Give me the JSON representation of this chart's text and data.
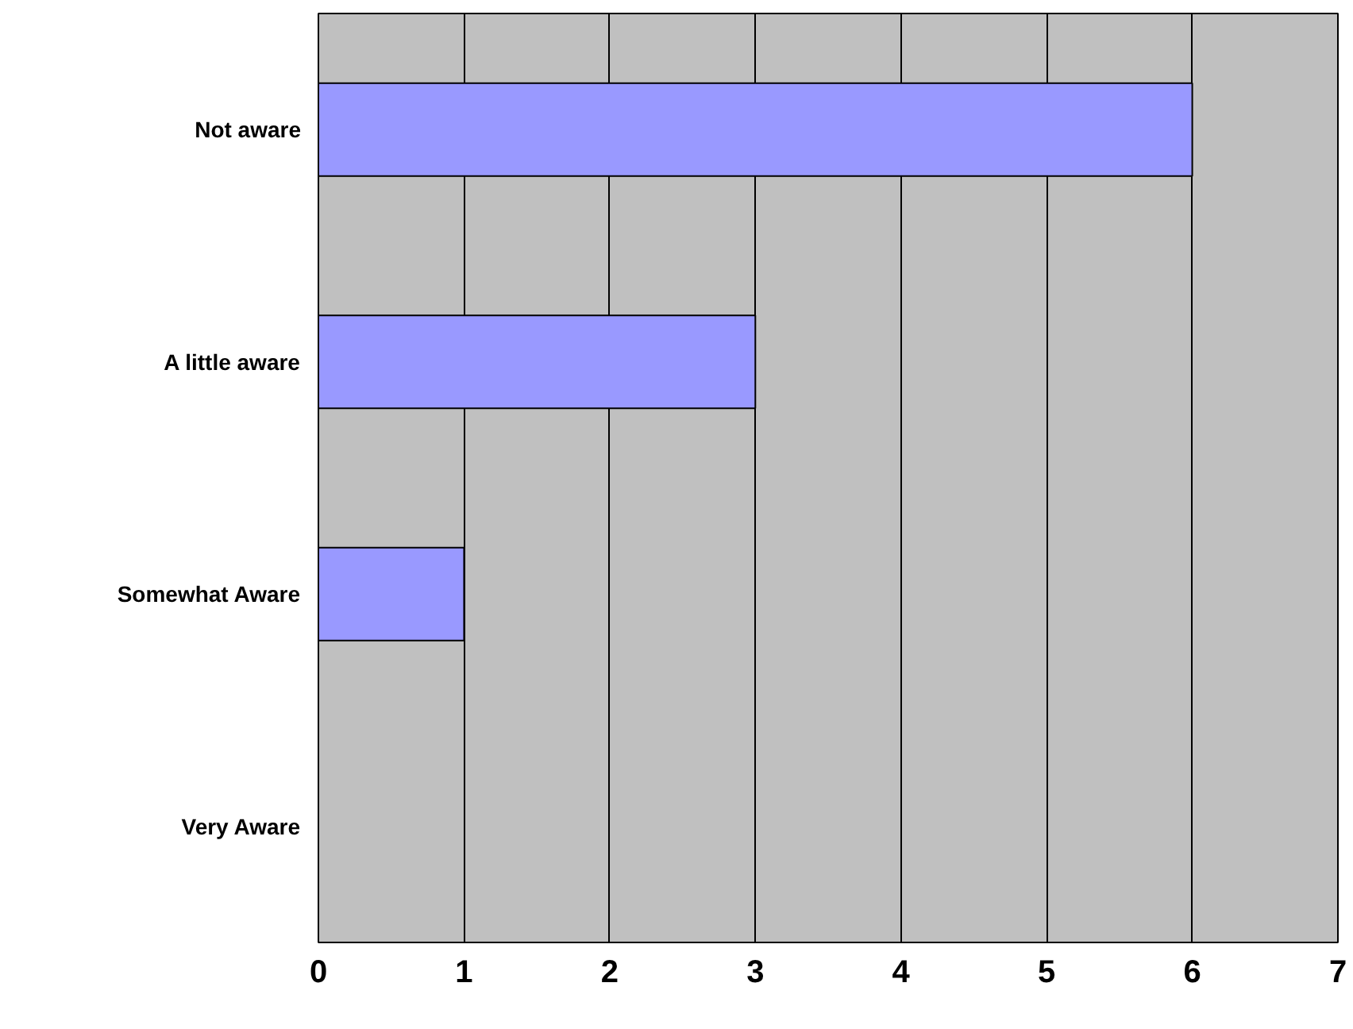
{
  "chart_data": {
    "type": "bar",
    "orientation": "horizontal",
    "categories": [
      "Not aware",
      "A little aware",
      "Somewhat Aware",
      "Very Aware"
    ],
    "values": [
      6,
      3,
      1,
      0
    ],
    "color": "#9999ff",
    "xlim": [
      0,
      7
    ],
    "xticks": [
      0,
      1,
      2,
      3,
      4,
      5,
      6,
      7
    ],
    "grid": "x"
  }
}
